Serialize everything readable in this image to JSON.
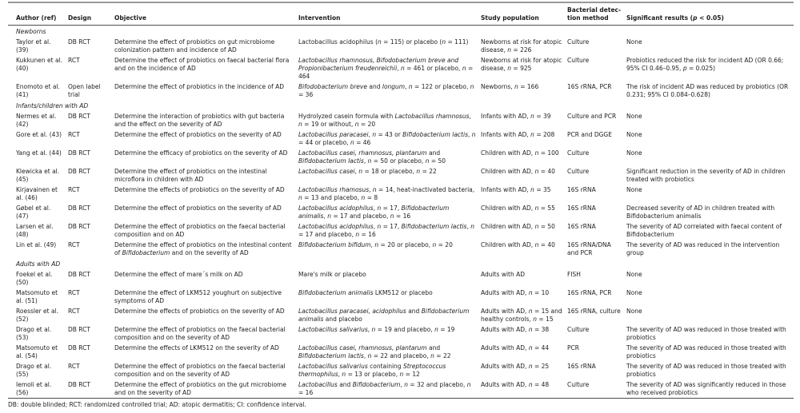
{
  "page": {
    "background": "#ffffff",
    "text_color": "#1e1e1e",
    "rule_color_top": "#999999",
    "rule_color_dark": "#4d4d4d"
  },
  "table": {
    "columns": [
      {
        "key": "author",
        "label": [
          "Author (ref)"
        ]
      },
      {
        "key": "design",
        "label": [
          "Design"
        ]
      },
      {
        "key": "objective",
        "label": [
          "Objective"
        ]
      },
      {
        "key": "intervention",
        "label": [
          "Intervention"
        ]
      },
      {
        "key": "population",
        "label": [
          "Study population"
        ]
      },
      {
        "key": "detection",
        "label": [
          "Bacterial detec-tion method"
        ]
      },
      {
        "key": "results",
        "label": [
          "Significant results (",
          {
            "i": "p"
          },
          " < 0.05)"
        ]
      }
    ],
    "rows": [
      {
        "section": "Newborns"
      },
      {
        "author": "Taylor et al. (39)",
        "design": "DB RCT",
        "objective": [
          "Determine the effect of probiotics on gut microbiome colonization pattern and incidence of AD"
        ],
        "intervention": [
          "Lactobacillus acidophilus (",
          {
            "i": "n"
          },
          " = 115) or placebo (",
          {
            "i": "n"
          },
          " = 111)"
        ],
        "population": [
          "Newborns at risk for atopic disease, ",
          {
            "i": "n"
          },
          " = 226"
        ],
        "detection": "Culture",
        "results": [
          "None"
        ]
      },
      {
        "author": "Kukkunen et al. (40)",
        "design": "RCT",
        "objective": [
          "Determine the effect of probiotics on faecal bacterial flora and on the incidence of AD"
        ],
        "intervention": [
          {
            "i": "Lactobacillus rhamnosus, Bifodobacterium breve and Propionibacterium freudenreichii"
          },
          ", ",
          {
            "i": "n"
          },
          " = 461 or placebo, ",
          {
            "i": "n"
          },
          " = 464"
        ],
        "population": [
          "Newborns at risk for atopic disease, ",
          {
            "i": "n"
          },
          " = 925"
        ],
        "detection": "Culture",
        "results": [
          "Probiotics reduced the risk for incident AD (OR 0.66; 95% CI 0.46–0.95, ",
          {
            "i": "p"
          },
          " = 0.025)"
        ]
      },
      {
        "author": "Enomoto et al. (41)",
        "design": "Open label trial",
        "objective": [
          "Determine the effect of probiotics in the incidence of AD"
        ],
        "intervention": [
          {
            "i": "Bifodobacterium breve"
          },
          " and ",
          {
            "i": "longum"
          },
          ", ",
          {
            "i": "n"
          },
          " = 122 or placebo, ",
          {
            "i": "n"
          },
          " = 36"
        ],
        "population": [
          "Newborns, ",
          {
            "i": "n"
          },
          " = 166"
        ],
        "detection": "16S rRNA, PCR",
        "results": [
          "The risk of incident AD was reduced by probiotics (OR 0.231; 95% CI 0.084–0.628)"
        ]
      },
      {
        "section": "Infants/children with AD"
      },
      {
        "author": "Nermes et al. (42)",
        "design": "DB RCT",
        "objective": [
          "Determine the interaction of probiotics with gut bacteria and the effect on the severity of AD"
        ],
        "intervention": [
          "Hydrolyzed casein formula with ",
          {
            "i": "Lactobacillus rhamnosus"
          },
          ", ",
          {
            "i": "n"
          },
          " = 19 or without, ",
          {
            "i": "n"
          },
          " = 20"
        ],
        "population": [
          "Infants with AD, ",
          {
            "i": "n"
          },
          " = 39"
        ],
        "detection": "Culture and PCR",
        "results": [
          "None"
        ]
      },
      {
        "author": "Gore et al. (43)",
        "design": "RCT",
        "objective": [
          "Determine the effect of probiotics on the severity of AD"
        ],
        "intervention": [
          {
            "i": "Lactobacillus paracasei"
          },
          ", ",
          {
            "i": "n"
          },
          " = 43 or ",
          {
            "i": "Bifidobacterium lactis"
          },
          ", ",
          {
            "i": "n"
          },
          " = 44 or placebo, ",
          {
            "i": "n"
          },
          " = 46"
        ],
        "population": [
          "Infants with AD, ",
          {
            "i": "n"
          },
          " = 208"
        ],
        "detection": "PCR and DGGE",
        "results": [
          "None"
        ]
      },
      {
        "author": "Yang et al. (44)",
        "design": "DB RCT",
        "objective": [
          "Determine the efficacy of probiotics on the severity of AD"
        ],
        "intervention": [
          {
            "i": "Lactobacillus casei, rhamnosus, plantarum"
          },
          " and ",
          {
            "i": "Bifidobacterium lactis"
          },
          ", ",
          {
            "i": "n"
          },
          " = 50 or placebo, ",
          {
            "i": "n"
          },
          " = 50"
        ],
        "population": [
          "Children with AD, ",
          {
            "i": "n"
          },
          " = 100"
        ],
        "detection": "Culture",
        "results": [
          "None"
        ]
      },
      {
        "author": "Klewicka et al. (45)",
        "design": "DB RCT",
        "objective": [
          "Determine the effect of probiotics on the intestinal microflora in children with AD"
        ],
        "intervention": [
          {
            "i": "Lactobacillus casei"
          },
          ", ",
          {
            "i": "n"
          },
          " = 18 or placebo, ",
          {
            "i": "n"
          },
          " = 22"
        ],
        "population": [
          "Children with AD, ",
          {
            "i": "n"
          },
          " = 40"
        ],
        "detection": "Culture",
        "results": [
          "Significant reduction in the severity of AD in children treated with probiotics"
        ]
      },
      {
        "author": "Kirjavainen et al. (46)",
        "design": "RCT",
        "objective": [
          "Determine the effects of probiotics on the severity of AD"
        ],
        "intervention": [
          {
            "i": "Lactobacillus rhamosus"
          },
          ", ",
          {
            "i": "n"
          },
          " = 14, heat-inactivated bacteria, ",
          {
            "i": "n"
          },
          " = 13 and placebo, ",
          {
            "i": "n"
          },
          " = 8"
        ],
        "population": [
          "Infants with AD, ",
          {
            "i": "n"
          },
          " = 35"
        ],
        "detection": "16S rRNA",
        "results": [
          "None"
        ]
      },
      {
        "author": "Gøbel et al. (47)",
        "design": "DB RCT",
        "objective": [
          "Determine the effect of probiotics on the severity of AD"
        ],
        "intervention": [
          {
            "i": "Lactobacillus acidophilus"
          },
          ", ",
          {
            "i": "n"
          },
          " = 17, ",
          {
            "i": "Bifidobacterium animalis"
          },
          ", ",
          {
            "i": "n"
          },
          " = 17 and placebo, ",
          {
            "i": "n"
          },
          " = 16"
        ],
        "population": [
          "Children with AD, ",
          {
            "i": "n"
          },
          " = 55"
        ],
        "detection": "16S rRNA",
        "results": [
          "Decreased severity of AD in children treated with Bifidobacterium animalis"
        ]
      },
      {
        "author": "Larsen et al. (48)",
        "design": "DB RCT",
        "objective": [
          "Determine the effect of probiotics on the faecal bacterial composition and on AD"
        ],
        "intervention": [
          {
            "i": "Lactobacillus acidophilus"
          },
          ", ",
          {
            "i": "n"
          },
          " = 17, ",
          {
            "i": "Bifidobacterium lactis"
          },
          ", ",
          {
            "i": "n"
          },
          " = 17 and placebo, ",
          {
            "i": "n"
          },
          " = 16"
        ],
        "population": [
          "Children with AD, ",
          {
            "i": "n"
          },
          " = 50"
        ],
        "detection": "16S rRNA",
        "results": [
          "The severity of AD correlated with faecal content of Bifidobacterium"
        ]
      },
      {
        "author": "Lin et al. (49)",
        "design": "RCT",
        "objective": [
          "Determine the effect of probiotics on the intestinal content of ",
          {
            "i": "Bifidobacterium"
          },
          " and on the severity of AD"
        ],
        "intervention": [
          {
            "i": "Bifidobacterium bifidum"
          },
          ", ",
          {
            "i": "n"
          },
          " = 20 or placebo, ",
          {
            "i": "n"
          },
          " = 20"
        ],
        "population": [
          "Children with AD, ",
          {
            "i": "n"
          },
          " = 40"
        ],
        "detection": "16S rRNA/DNA and PCR",
        "results": [
          "The severity of AD was reduced in the intervention group"
        ]
      },
      {
        "section": "Adults with AD"
      },
      {
        "author": "Foekel et al. (50)",
        "design": "DB RCT",
        "objective": [
          "Determine the effect of mare´s milk on AD"
        ],
        "intervention": [
          "Mare's milk or placebo"
        ],
        "population": [
          "Adults with AD"
        ],
        "detection": "FISH",
        "results": [
          "None"
        ]
      },
      {
        "author": "Matsomuto et al. (51)",
        "design": "RCT",
        "objective": [
          "Determine the effect of LKM512 youghurt on subjective symptoms of AD"
        ],
        "intervention": [
          {
            "i": "Bifidobacterium animalis"
          },
          " LKM512 or placebo"
        ],
        "population": [
          "Adults with AD, ",
          {
            "i": "n"
          },
          " = 10"
        ],
        "detection": "16S rRNA, PCR",
        "results": [
          "None"
        ]
      },
      {
        "author": "Roessler et al. (52)",
        "design": "RCT",
        "objective": [
          "Determine the effects of probiotics on the severity of AD"
        ],
        "intervention": [
          {
            "i": "Lactobacillus paracasei, acidophilus"
          },
          " and ",
          {
            "i": "Bifidobacterium animalis"
          },
          " and placebo"
        ],
        "population": [
          "Adults with AD, ",
          {
            "i": "n"
          },
          " = 15 and healthy controls, ",
          {
            "i": "n"
          },
          " = 15"
        ],
        "detection": "16S rRNA, culture",
        "results": [
          "None"
        ]
      },
      {
        "author": "Drago et al. (53)",
        "design": "DB RCT",
        "objective": [
          "Determine the effect of probiotics on the faecal bacterial composition and on the severity of AD"
        ],
        "intervention": [
          {
            "i": "Lactobacillus salivarius"
          },
          ", ",
          {
            "i": "n"
          },
          " = 19 and placebo, ",
          {
            "i": "n"
          },
          " = 19"
        ],
        "population": [
          "Adults with AD, ",
          {
            "i": "n"
          },
          " = 38"
        ],
        "detection": "Culture",
        "results": [
          "The severity of AD was reduced in those treated with probiotics"
        ]
      },
      {
        "author": "Matsomuto et al. (54)",
        "design": "DB RCT",
        "objective": [
          "Determine the effects of LKM512 on the severity of AD"
        ],
        "intervention": [
          {
            "i": "Lactobacillus casei, rhamnosus, plantarum"
          },
          " and ",
          {
            "i": "Bifidobacterium lactis"
          },
          ", ",
          {
            "i": "n"
          },
          " = 22 and placebo, ",
          {
            "i": "n"
          },
          " = 22"
        ],
        "population": [
          "Adults with AD, ",
          {
            "i": "n"
          },
          " = 44"
        ],
        "detection": "PCR",
        "results": [
          "The severity of AD was reduced in those treated with probiotics"
        ]
      },
      {
        "author": "Drago et al. (55)",
        "design": "RCT",
        "objective": [
          "Determine the effect of probiotics on the faecal bacterial composition and on the severity of AD"
        ],
        "intervention": [
          {
            "i": "Lactobacillus salivarius"
          },
          " containing ",
          {
            "i": "Streptococcus thermophilus"
          },
          ", ",
          {
            "i": "n"
          },
          " = 13 or placebo, ",
          {
            "i": "n"
          },
          " = 12"
        ],
        "population": [
          "Adults with AD, ",
          {
            "i": "n"
          },
          " = 25"
        ],
        "detection": "16S rRNA",
        "results": [
          "The severity of AD was reduced in those treated with probiotics"
        ]
      },
      {
        "author": "Iemoli et al. (56)",
        "design": "DB RCT",
        "objective": [
          "Determine the effect of probiotics on the gut microbiome and on the severity of AD"
        ],
        "intervention": [
          {
            "i": "Lactobacillus"
          },
          " and ",
          {
            "i": "Bifidobacterium"
          },
          ", ",
          {
            "i": "n"
          },
          " = 32 and placebo, ",
          {
            "i": "n"
          },
          " = 16"
        ],
        "population": [
          "Adults with AD, ",
          {
            "i": "n"
          },
          " = 48"
        ],
        "detection": "Culture",
        "results": [
          "The severity of AD was significantly reduced in those who received probiotics"
        ]
      }
    ]
  },
  "footnote": "DB: double blinded; RCT: randomized controlled trial; AD: atopic dermatitis; CI: confidence interval."
}
